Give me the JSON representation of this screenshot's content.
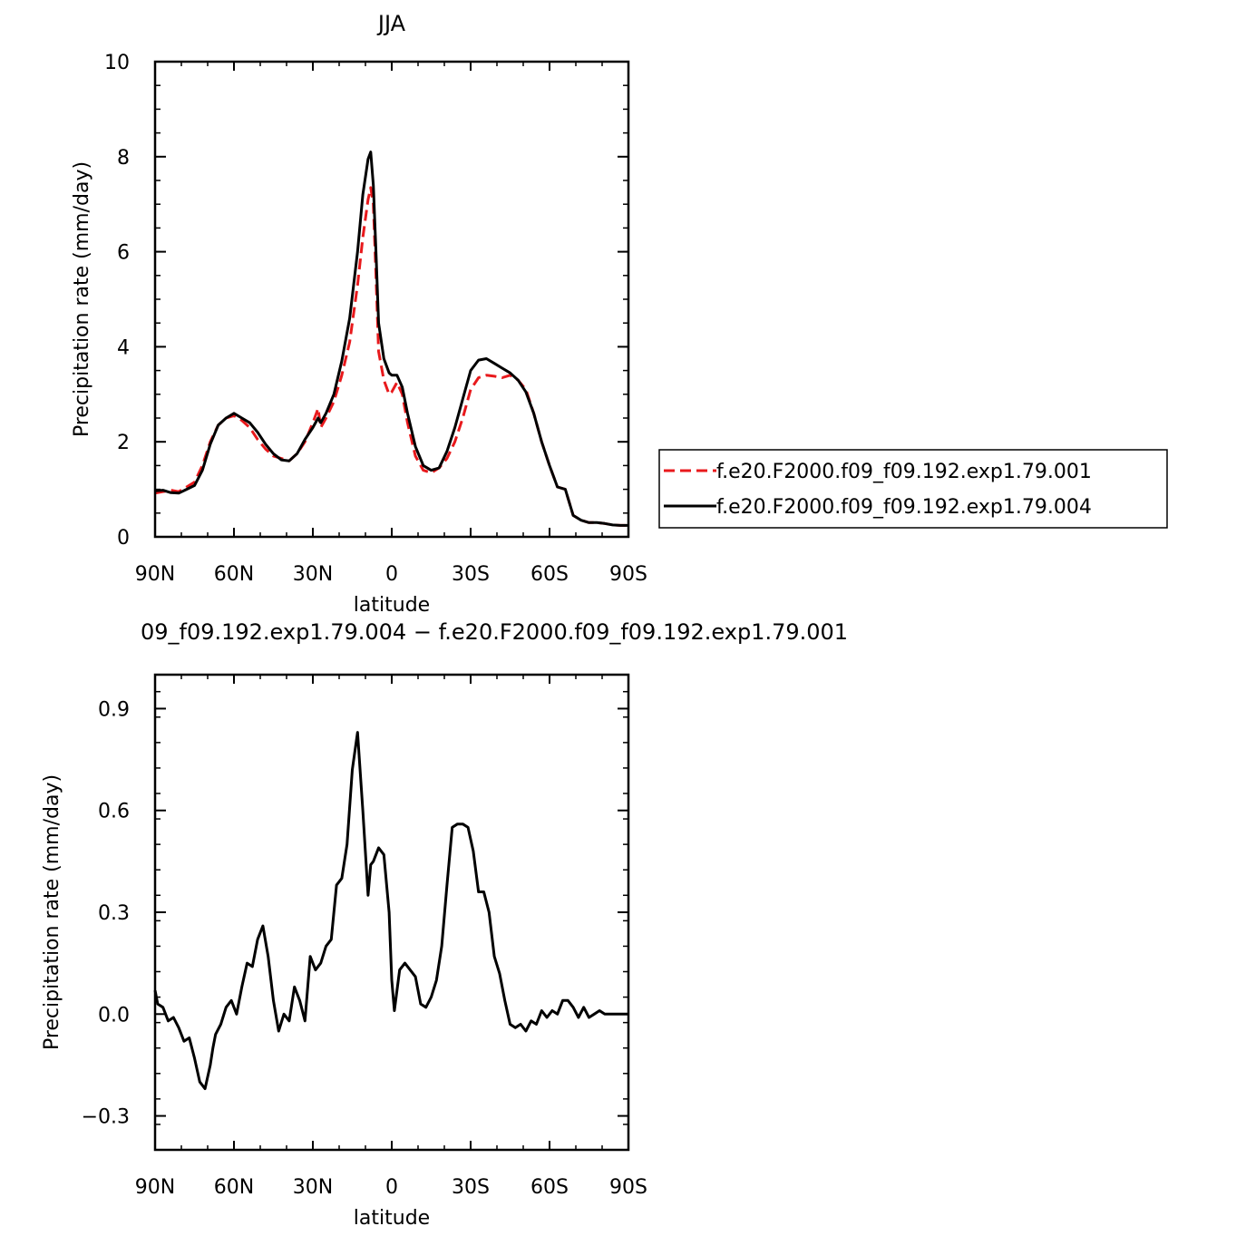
{
  "chart_data": [
    {
      "type": "line",
      "title": "JJA",
      "xlabel": "latitude",
      "ylabel": "Precipitation rate (mm/day)",
      "xlim": [
        90,
        -90
      ],
      "ylim": [
        0,
        10
      ],
      "xticks": [
        90,
        60,
        30,
        0,
        -30,
        -60,
        -90
      ],
      "xtick_labels": [
        "90N",
        "60N",
        "30N",
        "0",
        "30S",
        "60S",
        "90S"
      ],
      "yticks": [
        0,
        2,
        4,
        6,
        8,
        10
      ],
      "ytick_labels": [
        "0",
        "2",
        "4",
        "6",
        "8",
        "10"
      ],
      "grid": false,
      "legend_position": "right",
      "series": [
        {
          "name": "f.e20.F2000.f09_f09.192.exp1.79.001",
          "color": "#e8191c",
          "dash": "dashed",
          "x": [
            90,
            87,
            84,
            81,
            78,
            75,
            72,
            69,
            66,
            63,
            60,
            57,
            54,
            51,
            48,
            45,
            42,
            39,
            36,
            33,
            30,
            28,
            27,
            25,
            22,
            19,
            16,
            13,
            11,
            9,
            8,
            7,
            6,
            5,
            3,
            1,
            0,
            -2,
            -4,
            -6,
            -9,
            -12,
            -15,
            -18,
            -21,
            -24,
            -27,
            -30,
            -33,
            -36,
            -39,
            -42,
            -45,
            -48,
            -51,
            -54,
            -57,
            -60,
            -63,
            -66,
            -69,
            -72,
            -75,
            -78,
            -81,
            -84,
            -87,
            -90
          ],
          "y": [
            0.92,
            0.95,
            0.98,
            0.95,
            1.05,
            1.15,
            1.5,
            2.0,
            2.35,
            2.5,
            2.55,
            2.45,
            2.3,
            2.05,
            1.85,
            1.7,
            1.65,
            1.6,
            1.75,
            2.0,
            2.4,
            2.7,
            2.3,
            2.5,
            2.85,
            3.4,
            4.1,
            5.3,
            6.3,
            7.1,
            7.35,
            7.0,
            5.5,
            3.9,
            3.3,
            3.0,
            3.05,
            3.25,
            3.0,
            2.4,
            1.7,
            1.4,
            1.35,
            1.45,
            1.65,
            2.0,
            2.5,
            3.1,
            3.35,
            3.4,
            3.38,
            3.35,
            3.4,
            3.3,
            3.1,
            2.6,
            2.0,
            1.5,
            1.05,
            1.0,
            0.45,
            0.35,
            0.3,
            0.3,
            0.28,
            0.25,
            0.24,
            0.24
          ]
        },
        {
          "name": "f.e20.F2000.f09_f09.192.exp1.79.004",
          "color": "#000000",
          "dash": "solid",
          "x": [
            90,
            87,
            84,
            81,
            78,
            75,
            72,
            69,
            66,
            63,
            60,
            57,
            54,
            51,
            48,
            45,
            42,
            39,
            36,
            33,
            30,
            28,
            27,
            25,
            22,
            19,
            16,
            13,
            11,
            9,
            8,
            7,
            6,
            5,
            3,
            1,
            0,
            -2,
            -4,
            -6,
            -9,
            -12,
            -15,
            -18,
            -21,
            -24,
            -27,
            -30,
            -33,
            -36,
            -39,
            -42,
            -45,
            -48,
            -51,
            -54,
            -57,
            -60,
            -63,
            -66,
            -69,
            -72,
            -75,
            -78,
            -81,
            -84,
            -87,
            -90
          ],
          "y": [
            0.97,
            0.98,
            0.93,
            0.92,
            1.0,
            1.08,
            1.4,
            1.95,
            2.35,
            2.5,
            2.6,
            2.5,
            2.4,
            2.2,
            1.95,
            1.75,
            1.62,
            1.6,
            1.75,
            2.05,
            2.3,
            2.5,
            2.4,
            2.6,
            3.0,
            3.7,
            4.6,
            6.0,
            7.2,
            7.95,
            8.1,
            7.4,
            6.0,
            4.5,
            3.75,
            3.45,
            3.4,
            3.4,
            3.15,
            2.6,
            1.9,
            1.5,
            1.4,
            1.45,
            1.8,
            2.3,
            2.9,
            3.5,
            3.72,
            3.75,
            3.65,
            3.55,
            3.45,
            3.3,
            3.05,
            2.6,
            2.0,
            1.5,
            1.05,
            1.0,
            0.45,
            0.35,
            0.3,
            0.3,
            0.28,
            0.25,
            0.24,
            0.24
          ]
        }
      ]
    },
    {
      "type": "line",
      "title": "09_f09.192.exp1.79.004 − f.e20.F2000.f09_f09.192.exp1.79.001",
      "xlabel": "latitude",
      "ylabel": "Precipitation rate (mm/day)",
      "xlim": [
        90,
        -90
      ],
      "ylim": [
        -0.4,
        1.0
      ],
      "xticks": [
        90,
        60,
        30,
        0,
        -30,
        -60,
        -90
      ],
      "xtick_labels": [
        "90N",
        "60N",
        "30N",
        "0",
        "30S",
        "60S",
        "90S"
      ],
      "yticks": [
        -0.3,
        0.0,
        0.3,
        0.6,
        0.9
      ],
      "ytick_labels": [
        "−0.3",
        "0.0",
        "0.3",
        "0.6",
        "0.9"
      ],
      "grid": false,
      "series": [
        {
          "color": "#000000",
          "dash": "solid",
          "x": [
            90,
            89,
            87,
            85,
            83,
            81,
            79,
            77,
            75,
            73,
            71,
            69,
            68,
            67,
            65,
            63,
            61,
            59,
            57,
            55,
            53,
            51,
            49,
            47,
            45,
            43,
            41,
            39,
            37,
            35,
            33,
            31,
            29,
            27,
            25,
            23,
            21,
            19,
            17,
            15,
            13,
            11,
            9,
            8,
            7,
            5,
            3,
            1,
            0,
            -1,
            -3,
            -5,
            -7,
            -9,
            -11,
            -13,
            -15,
            -17,
            -19,
            -21,
            -23,
            -25,
            -27,
            -29,
            -31,
            -33,
            -35,
            -37,
            -39,
            -41,
            -43,
            -45,
            -47,
            -49,
            -51,
            -53,
            -55,
            -57,
            -59,
            -61,
            -63,
            -65,
            -67,
            -69,
            -71,
            -73,
            -75,
            -77,
            -79,
            -81,
            -83,
            -85,
            -87,
            -89,
            -90
          ],
          "y": [
            0.07,
            0.03,
            0.02,
            -0.02,
            -0.01,
            -0.04,
            -0.08,
            -0.07,
            -0.13,
            -0.2,
            -0.22,
            -0.15,
            -0.1,
            -0.06,
            -0.03,
            0.02,
            0.04,
            0.0,
            0.08,
            0.15,
            0.14,
            0.22,
            0.26,
            0.17,
            0.04,
            -0.05,
            0.0,
            -0.02,
            0.08,
            0.04,
            -0.02,
            0.17,
            0.13,
            0.15,
            0.2,
            0.22,
            0.38,
            0.4,
            0.5,
            0.72,
            0.83,
            0.6,
            0.35,
            0.44,
            0.45,
            0.49,
            0.47,
            0.3,
            0.1,
            0.01,
            0.13,
            0.15,
            0.13,
            0.11,
            0.03,
            0.02,
            0.05,
            0.1,
            0.2,
            0.38,
            0.55,
            0.56,
            0.56,
            0.55,
            0.48,
            0.36,
            0.36,
            0.3,
            0.17,
            0.12,
            0.04,
            -0.03,
            -0.04,
            -0.03,
            -0.05,
            -0.02,
            -0.03,
            0.01,
            -0.01,
            0.01,
            0.0,
            0.04,
            0.04,
            0.02,
            -0.01,
            0.02,
            -0.01,
            0.0,
            0.01,
            0.0,
            0.0,
            0.0,
            0.0,
            0.0,
            0.0
          ]
        }
      ]
    }
  ]
}
